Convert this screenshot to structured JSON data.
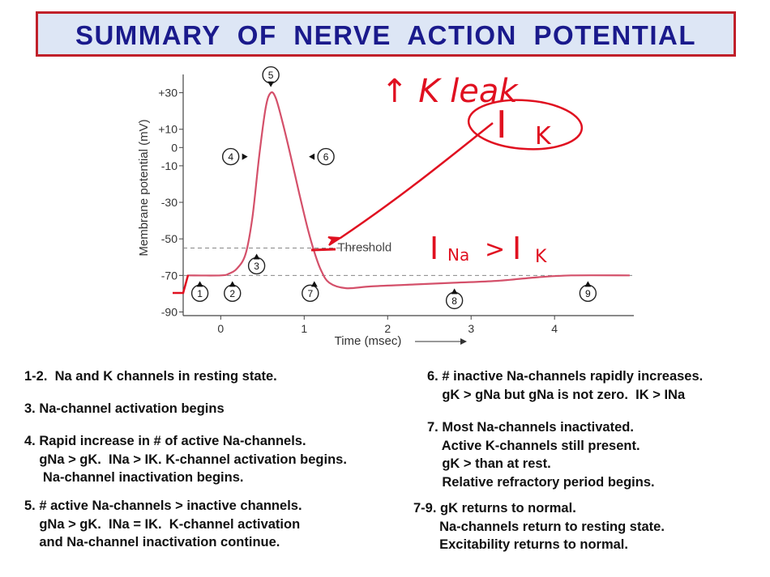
{
  "banner": {
    "title": "SUMMARY  OF  NERVE  ACTION  POTENTIAL"
  },
  "colors": {
    "banner_bg": "#dde6f5",
    "banner_border": "#c0202a",
    "title_text": "#1a1a8c",
    "curve": "#d4506a",
    "ink": "#e01020"
  },
  "chart_data": {
    "type": "line",
    "xlabel": "Time (msec)",
    "ylabel": "Membrane potential (mV)",
    "xlim": [
      -0.45,
      4.95
    ],
    "ylim": [
      -92,
      40
    ],
    "x_ticks": [
      "0",
      "1",
      "2",
      "3",
      "4"
    ],
    "y_ticks": [
      "+30",
      "+10",
      "0",
      "-10",
      "-30",
      "-50",
      "-70",
      "-90"
    ],
    "threshold_label": "Threshold",
    "threshold_mv": -55,
    "resting_mv": -70,
    "series": [
      {
        "x": [
          -0.4,
          0.0,
          0.1,
          0.2,
          0.3,
          0.38,
          0.46,
          0.54,
          0.6,
          0.66,
          0.74,
          0.84,
          0.94,
          1.04,
          1.12,
          1.2,
          1.3,
          1.5,
          1.8,
          2.3,
          2.8,
          3.3,
          3.8,
          4.2,
          4.9
        ],
        "y": [
          -70,
          -70,
          -69,
          -66,
          -58,
          -38,
          -5,
          22,
          30,
          27,
          14,
          -5,
          -25,
          -44,
          -57,
          -67,
          -74,
          -77,
          -76,
          -75,
          -74,
          -73,
          -71,
          -70,
          -70
        ]
      }
    ],
    "markers": [
      {
        "label": "1",
        "x": -0.25,
        "y": -70,
        "pointer": "up"
      },
      {
        "label": "2",
        "x": 0.14,
        "y": -70,
        "pointer": "up"
      },
      {
        "label": "3",
        "x": 0.43,
        "y": -55,
        "pointer": "up"
      },
      {
        "label": "4",
        "x": 0.45,
        "y": -5,
        "pointer": "right"
      },
      {
        "label": "5",
        "x": 0.6,
        "y": 30,
        "pointer": "down"
      },
      {
        "label": "6",
        "x": 0.93,
        "y": -5,
        "pointer": "left"
      },
      {
        "label": "7",
        "x": 1.17,
        "y": -70,
        "pointer": "up-right"
      },
      {
        "label": "8",
        "x": 2.8,
        "y": -74,
        "pointer": "up"
      },
      {
        "label": "9",
        "x": 4.4,
        "y": -70,
        "pointer": "up"
      }
    ]
  },
  "handwriting": {
    "k_leak": "↑ K leak",
    "ik": "I",
    "ik_sub": "K",
    "ina_ik": "I",
    "ina_sub": "Na",
    "gt": ">",
    "ik2": "I",
    "ik2_sub": "K"
  },
  "notes": {
    "left": [
      "1-2.  Na and K channels in resting state.",
      "3. Na-channel activation begins",
      "4. Rapid increase in # of active Na-channels.\n    gNa > gK.  INa > IK. K-channel activation begins.\n     Na-channel inactivation begins.",
      "5. # active Na-channels > inactive channels.\n    gNa > gK.  INa = IK.  K-channel activation\n    and Na-channel inactivation continue."
    ],
    "right": [
      "6. # inactive Na-channels rapidly increases.\n    gK > gNa but gNa is not zero.  IK > INa",
      "7. Most Na-channels inactivated.\n    Active K-channels still present.\n    gK > than at rest.\n    Relative refractory period begins.",
      "7-9. gK returns to normal.\n       Na-channels return to resting state.\n       Excitability returns to normal."
    ]
  }
}
